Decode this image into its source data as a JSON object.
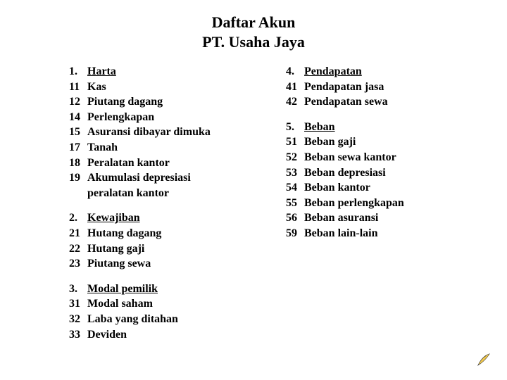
{
  "title_line1": "Daftar Akun",
  "title_line2": "PT. Usaha Jaya",
  "left_sections": [
    {
      "header_code": "1.",
      "header_name": "Harta",
      "items": [
        {
          "code": "11",
          "name": "Kas"
        },
        {
          "code": "12",
          "name": "Piutang dagang"
        },
        {
          "code": "14",
          "name": "Perlengkapan"
        },
        {
          "code": "15",
          "name": "Asuransi dibayar dimuka"
        },
        {
          "code": "17",
          "name": "Tanah"
        },
        {
          "code": "18",
          "name": "Peralatan kantor"
        },
        {
          "code": "19",
          "name": "Akumulasi depresiasi peralatan kantor"
        }
      ]
    },
    {
      "header_code": "2.",
      "header_name": "Kewajiban",
      "items": [
        {
          "code": "21",
          "name": "Hutang dagang"
        },
        {
          "code": "22",
          "name": "Hutang gaji"
        },
        {
          "code": "23",
          "name": "Piutang sewa"
        }
      ]
    },
    {
      "header_code": "3.",
      "header_name": "Modal pemilik",
      "items": [
        {
          "code": "31",
          "name": "Modal saham"
        },
        {
          "code": "32",
          "name": "Laba yang ditahan"
        },
        {
          "code": "33",
          "name": "Deviden"
        }
      ]
    }
  ],
  "right_sections": [
    {
      "header_code": "4.",
      "header_name": "Pendapatan",
      "items": [
        {
          "code": "41",
          "name": "Pendapatan jasa"
        },
        {
          "code": "42",
          "name": "Pendapatan sewa"
        }
      ]
    },
    {
      "header_code": "5.",
      "header_name": "Beban",
      "items": [
        {
          "code": "51",
          "name": "Beban gaji"
        },
        {
          "code": "52",
          "name": "Beban sewa kantor"
        },
        {
          "code": "53",
          "name": "Beban depresiasi"
        },
        {
          "code": "54",
          "name": "Beban kantor"
        },
        {
          "code": "55",
          "name": "Beban perlengkapan"
        },
        {
          "code": "56",
          "name": "Beban asuransi"
        },
        {
          "code": "59",
          "name": "Beban lain-lain"
        }
      ]
    }
  ],
  "styling": {
    "background_color": "#ffffff",
    "text_color": "#000000",
    "title_fontsize_pt": 17,
    "body_fontsize_pt": 12,
    "font_family": "Times New Roman",
    "font_weight": "bold",
    "corner_icon_colors": {
      "fill": "#f2c94c",
      "shadow": "#333333"
    }
  }
}
